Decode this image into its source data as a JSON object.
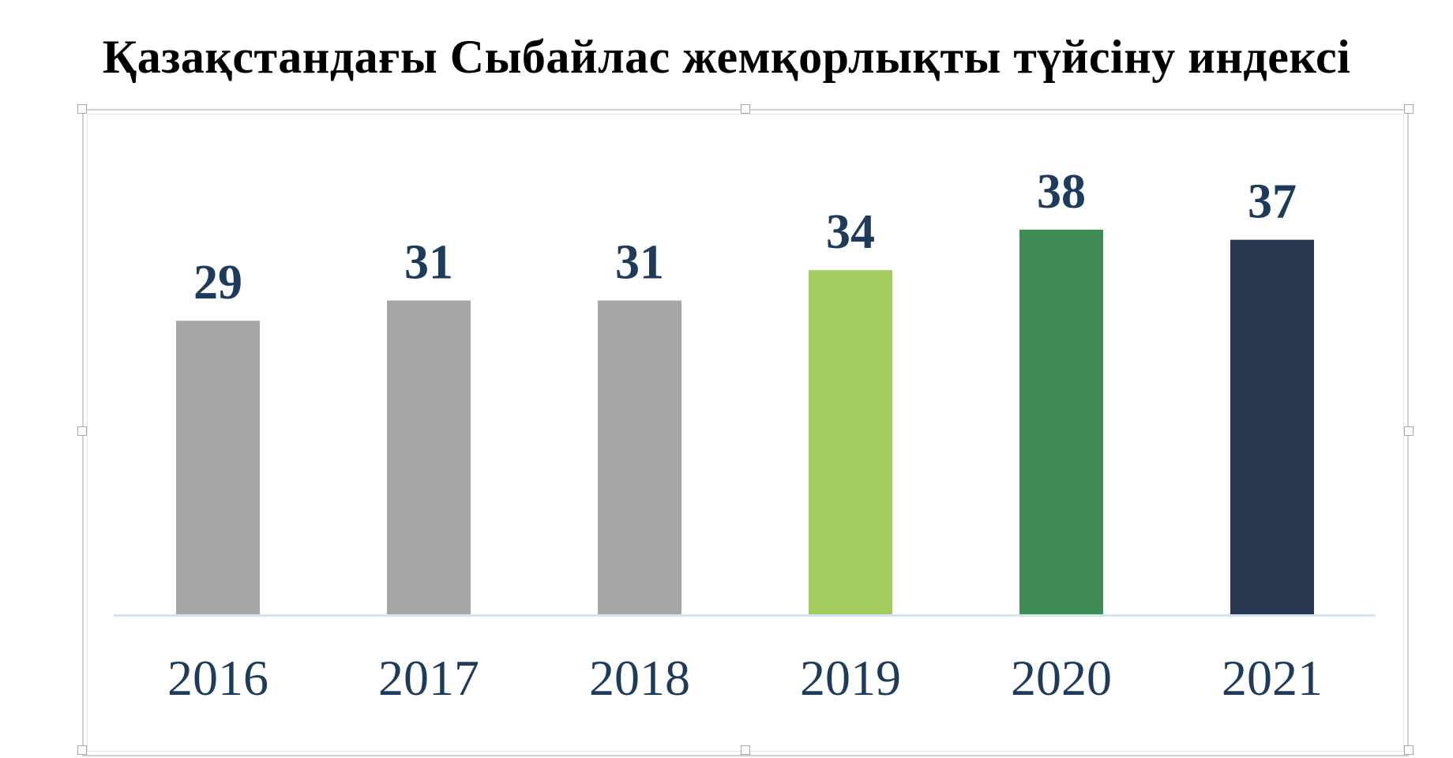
{
  "chart_data": {
    "type": "bar",
    "title": "Қазақстандағы Сыбайлас жемқорлықты түйсіну  индексі",
    "categories": [
      "2016",
      "2017",
      "2018",
      "2019",
      "2020",
      "2021"
    ],
    "values": [
      29,
      31,
      31,
      34,
      38,
      37
    ],
    "bar_colors": [
      "#a6a6a6",
      "#a6a6a6",
      "#a6a6a6",
      "#a3cc5f",
      "#3f8c57",
      "#2a3852"
    ],
    "label_color": "#1f3b5c",
    "tick_color": "#1f3b5c",
    "axis_color": "#d6e4ef",
    "xlabel": "",
    "ylabel": "",
    "grid": false,
    "legend": "none",
    "data_labels": true
  }
}
